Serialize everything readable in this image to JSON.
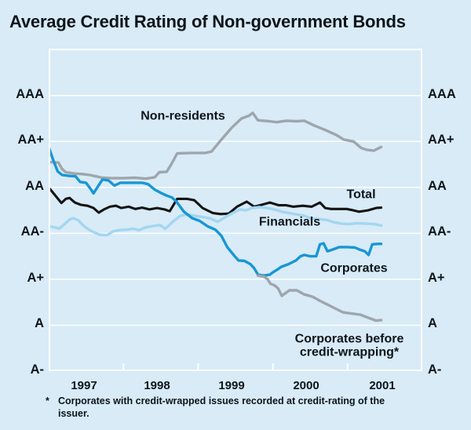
{
  "chart_data": {
    "type": "line",
    "title": "Average Credit Rating of Non-government Bonds",
    "x_range": [
      1997,
      2002
    ],
    "x_tick_years": [
      1998,
      1999,
      2000,
      2001
    ],
    "x_year_labels": [
      "1997",
      "1998",
      "1999",
      "2000",
      "2001"
    ],
    "y_ticks": [
      {
        "label": "AAA",
        "value": 9
      },
      {
        "label": "AA+",
        "value": 8
      },
      {
        "label": "AA",
        "value": 7
      },
      {
        "label": "AA-",
        "value": 6
      },
      {
        "label": "A+",
        "value": 5
      },
      {
        "label": "A",
        "value": 4
      },
      {
        "label": "A-",
        "value": 3
      }
    ],
    "grid": true,
    "legend_position": "inline-labels",
    "colors": {
      "background": "#d8ebf7",
      "grid": "#ffffff",
      "frame": "#ffffff",
      "text": "#0e141b"
    },
    "rating_scale_note": "numeric values: AAA=9, AA+=8, AA=7, AA-=6, A+=5, A=4, A-=3",
    "series": [
      {
        "id": "non-residents",
        "name": "Non-residents",
        "color": "#9ea5ab",
        "points": [
          [
            1997.0,
            7.55
          ],
          [
            1997.13,
            7.54
          ],
          [
            1997.18,
            7.4
          ],
          [
            1997.23,
            7.33
          ],
          [
            1997.35,
            7.3
          ],
          [
            1997.45,
            7.29
          ],
          [
            1997.55,
            7.27
          ],
          [
            1997.63,
            7.24
          ],
          [
            1997.72,
            7.21
          ],
          [
            1997.85,
            7.2
          ],
          [
            1998.0,
            7.2
          ],
          [
            1998.15,
            7.21
          ],
          [
            1998.3,
            7.19
          ],
          [
            1998.42,
            7.22
          ],
          [
            1998.48,
            7.33
          ],
          [
            1998.58,
            7.34
          ],
          [
            1998.64,
            7.5
          ],
          [
            1998.72,
            7.74
          ],
          [
            1998.9,
            7.75
          ],
          [
            1999.1,
            7.75
          ],
          [
            1999.18,
            7.78
          ],
          [
            1999.3,
            8.02
          ],
          [
            1999.45,
            8.3
          ],
          [
            1999.58,
            8.5
          ],
          [
            1999.68,
            8.56
          ],
          [
            1999.73,
            8.62
          ],
          [
            1999.8,
            8.46
          ],
          [
            1999.95,
            8.44
          ],
          [
            2000.05,
            8.42
          ],
          [
            2000.18,
            8.45
          ],
          [
            2000.32,
            8.44
          ],
          [
            2000.42,
            8.45
          ],
          [
            2000.55,
            8.35
          ],
          [
            2000.7,
            8.25
          ],
          [
            2000.85,
            8.14
          ],
          [
            2000.95,
            8.04
          ],
          [
            2001.08,
            8.0
          ],
          [
            2001.18,
            7.86
          ],
          [
            2001.25,
            7.82
          ],
          [
            2001.35,
            7.8
          ],
          [
            2001.45,
            7.88
          ]
        ]
      },
      {
        "id": "total",
        "name": "Total",
        "color": "#141414",
        "points": [
          [
            1997.0,
            7.0
          ],
          [
            1997.07,
            6.86
          ],
          [
            1997.13,
            6.74
          ],
          [
            1997.17,
            6.66
          ],
          [
            1997.23,
            6.75
          ],
          [
            1997.28,
            6.77
          ],
          [
            1997.35,
            6.67
          ],
          [
            1997.43,
            6.62
          ],
          [
            1997.52,
            6.6
          ],
          [
            1997.6,
            6.55
          ],
          [
            1997.67,
            6.45
          ],
          [
            1997.74,
            6.52
          ],
          [
            1997.82,
            6.58
          ],
          [
            1997.9,
            6.6
          ],
          [
            1997.97,
            6.55
          ],
          [
            1998.07,
            6.58
          ],
          [
            1998.16,
            6.53
          ],
          [
            1998.25,
            6.56
          ],
          [
            1998.35,
            6.52
          ],
          [
            1998.45,
            6.55
          ],
          [
            1998.55,
            6.52
          ],
          [
            1998.62,
            6.48
          ],
          [
            1998.72,
            6.75
          ],
          [
            1998.85,
            6.75
          ],
          [
            1998.95,
            6.72
          ],
          [
            1999.06,
            6.55
          ],
          [
            1999.2,
            6.44
          ],
          [
            1999.3,
            6.42
          ],
          [
            1999.41,
            6.43
          ],
          [
            1999.52,
            6.58
          ],
          [
            1999.65,
            6.69
          ],
          [
            1999.75,
            6.58
          ],
          [
            1999.85,
            6.62
          ],
          [
            1999.96,
            6.67
          ],
          [
            2000.08,
            6.61
          ],
          [
            2000.18,
            6.61
          ],
          [
            2000.27,
            6.58
          ],
          [
            2000.4,
            6.6
          ],
          [
            2000.52,
            6.58
          ],
          [
            2000.63,
            6.67
          ],
          [
            2000.7,
            6.55
          ],
          [
            2000.78,
            6.53
          ],
          [
            2000.9,
            6.53
          ],
          [
            2000.99,
            6.53
          ],
          [
            2001.08,
            6.5
          ],
          [
            2001.15,
            6.47
          ],
          [
            2001.27,
            6.5
          ],
          [
            2001.38,
            6.55
          ],
          [
            2001.45,
            6.56
          ]
        ]
      },
      {
        "id": "financials",
        "name": "Financials",
        "color": "#a3d6f0",
        "points": [
          [
            1997.0,
            6.16
          ],
          [
            1997.08,
            6.13
          ],
          [
            1997.14,
            6.1
          ],
          [
            1997.2,
            6.18
          ],
          [
            1997.28,
            6.3
          ],
          [
            1997.33,
            6.33
          ],
          [
            1997.4,
            6.28
          ],
          [
            1997.47,
            6.16
          ],
          [
            1997.54,
            6.08
          ],
          [
            1997.61,
            6.02
          ],
          [
            1997.68,
            5.97
          ],
          [
            1997.78,
            5.96
          ],
          [
            1997.86,
            6.04
          ],
          [
            1997.94,
            6.07
          ],
          [
            1998.04,
            6.08
          ],
          [
            1998.13,
            6.1
          ],
          [
            1998.21,
            6.07
          ],
          [
            1998.3,
            6.13
          ],
          [
            1998.4,
            6.16
          ],
          [
            1998.49,
            6.18
          ],
          [
            1998.56,
            6.1
          ],
          [
            1998.66,
            6.25
          ],
          [
            1998.76,
            6.38
          ],
          [
            1998.86,
            6.41
          ],
          [
            1998.96,
            6.38
          ],
          [
            1999.08,
            6.35
          ],
          [
            1999.17,
            6.32
          ],
          [
            1999.26,
            6.25
          ],
          [
            1999.36,
            6.35
          ],
          [
            1999.46,
            6.44
          ],
          [
            1999.56,
            6.52
          ],
          [
            1999.64,
            6.5
          ],
          [
            1999.72,
            6.55
          ],
          [
            1999.82,
            6.57
          ],
          [
            1999.92,
            6.55
          ],
          [
            2000.02,
            6.52
          ],
          [
            2000.12,
            6.47
          ],
          [
            2000.22,
            6.44
          ],
          [
            2000.32,
            6.41
          ],
          [
            2000.42,
            6.38
          ],
          [
            2000.52,
            6.32
          ],
          [
            2000.62,
            6.31
          ],
          [
            2000.72,
            6.29
          ],
          [
            2000.82,
            6.24
          ],
          [
            2000.92,
            6.21
          ],
          [
            2001.02,
            6.2
          ],
          [
            2001.12,
            6.22
          ],
          [
            2001.25,
            6.21
          ],
          [
            2001.35,
            6.2
          ],
          [
            2001.45,
            6.17
          ]
        ]
      },
      {
        "id": "corporates",
        "name": "Corporates",
        "color": "#1896d4",
        "points": [
          [
            1997.0,
            7.88
          ],
          [
            1997.06,
            7.6
          ],
          [
            1997.12,
            7.35
          ],
          [
            1997.18,
            7.27
          ],
          [
            1997.28,
            7.25
          ],
          [
            1997.36,
            7.24
          ],
          [
            1997.42,
            7.12
          ],
          [
            1997.5,
            7.1
          ],
          [
            1997.56,
            6.97
          ],
          [
            1997.6,
            6.87
          ],
          [
            1997.66,
            7.02
          ],
          [
            1997.72,
            7.17
          ],
          [
            1997.8,
            7.15
          ],
          [
            1997.88,
            7.04
          ],
          [
            1997.96,
            7.1
          ],
          [
            1998.1,
            7.1
          ],
          [
            1998.25,
            7.1
          ],
          [
            1998.33,
            7.07
          ],
          [
            1998.42,
            6.95
          ],
          [
            1998.5,
            6.88
          ],
          [
            1998.58,
            6.82
          ],
          [
            1998.65,
            6.78
          ],
          [
            1998.71,
            6.69
          ],
          [
            1998.81,
            6.47
          ],
          [
            1998.92,
            6.33
          ],
          [
            1999.02,
            6.27
          ],
          [
            1999.13,
            6.15
          ],
          [
            1999.23,
            6.08
          ],
          [
            1999.31,
            5.95
          ],
          [
            1999.39,
            5.7
          ],
          [
            1999.49,
            5.5
          ],
          [
            1999.54,
            5.41
          ],
          [
            1999.62,
            5.4
          ],
          [
            1999.7,
            5.33
          ],
          [
            1999.75,
            5.24
          ],
          [
            1999.8,
            5.1
          ],
          [
            1999.88,
            5.08
          ],
          [
            1999.96,
            5.1
          ],
          [
            2000.0,
            5.15
          ],
          [
            2000.06,
            5.21
          ],
          [
            2000.11,
            5.27
          ],
          [
            2000.21,
            5.33
          ],
          [
            2000.31,
            5.41
          ],
          [
            2000.37,
            5.5
          ],
          [
            2000.42,
            5.53
          ],
          [
            2000.5,
            5.5
          ],
          [
            2000.58,
            5.5
          ],
          [
            2000.63,
            5.76
          ],
          [
            2000.68,
            5.78
          ],
          [
            2000.73,
            5.61
          ],
          [
            2000.79,
            5.64
          ],
          [
            2000.89,
            5.7
          ],
          [
            2001.0,
            5.7
          ],
          [
            2001.1,
            5.69
          ],
          [
            2001.17,
            5.64
          ],
          [
            2001.23,
            5.61
          ],
          [
            2001.28,
            5.53
          ],
          [
            2001.33,
            5.76
          ],
          [
            2001.4,
            5.77
          ],
          [
            2001.45,
            5.77
          ]
        ]
      },
      {
        "id": "corporates-before-credit-wrapping",
        "name": "Corporates before credit-wrapping*",
        "color": "#9ea5ab",
        "points": [
          [
            1999.8,
            5.08
          ],
          [
            1999.88,
            5.06
          ],
          [
            1999.93,
            5.0
          ],
          [
            1999.97,
            4.9
          ],
          [
            2000.02,
            4.87
          ],
          [
            2000.07,
            4.8
          ],
          [
            2000.12,
            4.64
          ],
          [
            2000.17,
            4.7
          ],
          [
            2000.22,
            4.76
          ],
          [
            2000.32,
            4.76
          ],
          [
            2000.42,
            4.67
          ],
          [
            2000.53,
            4.62
          ],
          [
            2000.63,
            4.53
          ],
          [
            2000.73,
            4.45
          ],
          [
            2000.84,
            4.36
          ],
          [
            2000.94,
            4.28
          ],
          [
            2001.07,
            4.25
          ],
          [
            2001.17,
            4.23
          ],
          [
            2001.28,
            4.16
          ],
          [
            2001.38,
            4.1
          ],
          [
            2001.45,
            4.11
          ]
        ]
      }
    ],
    "footnote": {
      "marker": "*",
      "text": "Corporates with credit-wrapped issues recorded at credit-rating of the issuer."
    }
  }
}
